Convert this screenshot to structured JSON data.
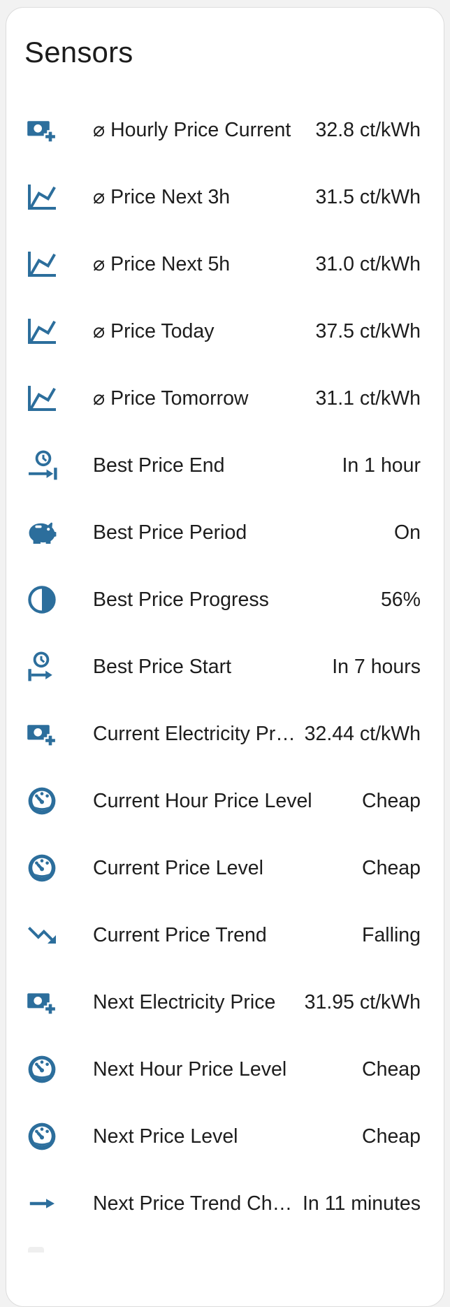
{
  "card": {
    "title": "Sensors"
  },
  "colors": {
    "accent_blue": "#2c6e9c",
    "text": "#1d1d1d",
    "card_background": "#ffffff",
    "page_background": "#f2f2f2",
    "card_border": "#dcdcdc"
  },
  "sensors": [
    {
      "icon": "cash-plus-icon",
      "label": "⌀ Hourly Price Current",
      "value": "32.8 ct/kWh"
    },
    {
      "icon": "chart-line-icon",
      "label": "⌀ Price Next 3h",
      "value": "31.5 ct/kWh"
    },
    {
      "icon": "chart-line-icon",
      "label": "⌀ Price Next 5h",
      "value": "31.0 ct/kWh"
    },
    {
      "icon": "chart-line-icon",
      "label": "⌀ Price Today",
      "value": "37.5 ct/kWh"
    },
    {
      "icon": "chart-line-icon",
      "label": "⌀ Price Tomorrow",
      "value": "31.1 ct/kWh"
    },
    {
      "icon": "clock-end-icon",
      "label": "Best Price End",
      "value": "In 1 hour"
    },
    {
      "icon": "piggy-bank-icon",
      "label": "Best Price Period",
      "value": "On"
    },
    {
      "icon": "circle-half-full-icon",
      "label": "Best Price Progress",
      "value": "56%"
    },
    {
      "icon": "clock-start-icon",
      "label": "Best Price Start",
      "value": "In 7 hours"
    },
    {
      "icon": "cash-plus-icon",
      "label": "Current Electricity Pr…",
      "value": "32.44 ct/kWh"
    },
    {
      "icon": "gauge-icon",
      "label": "Current Hour Price Level",
      "value": "Cheap"
    },
    {
      "icon": "gauge-icon",
      "label": "Current Price Level",
      "value": "Cheap"
    },
    {
      "icon": "trending-down-icon",
      "label": "Current Price Trend",
      "value": "Falling"
    },
    {
      "icon": "cash-plus-icon",
      "label": "Next Electricity Price",
      "value": "31.95 ct/kWh"
    },
    {
      "icon": "gauge-icon",
      "label": "Next Hour Price Level",
      "value": "Cheap"
    },
    {
      "icon": "gauge-icon",
      "label": "Next Price Level",
      "value": "Cheap"
    },
    {
      "icon": "arrow-right-icon",
      "label": "Next Price Trend Ch…",
      "value": "In 11 minutes"
    }
  ]
}
